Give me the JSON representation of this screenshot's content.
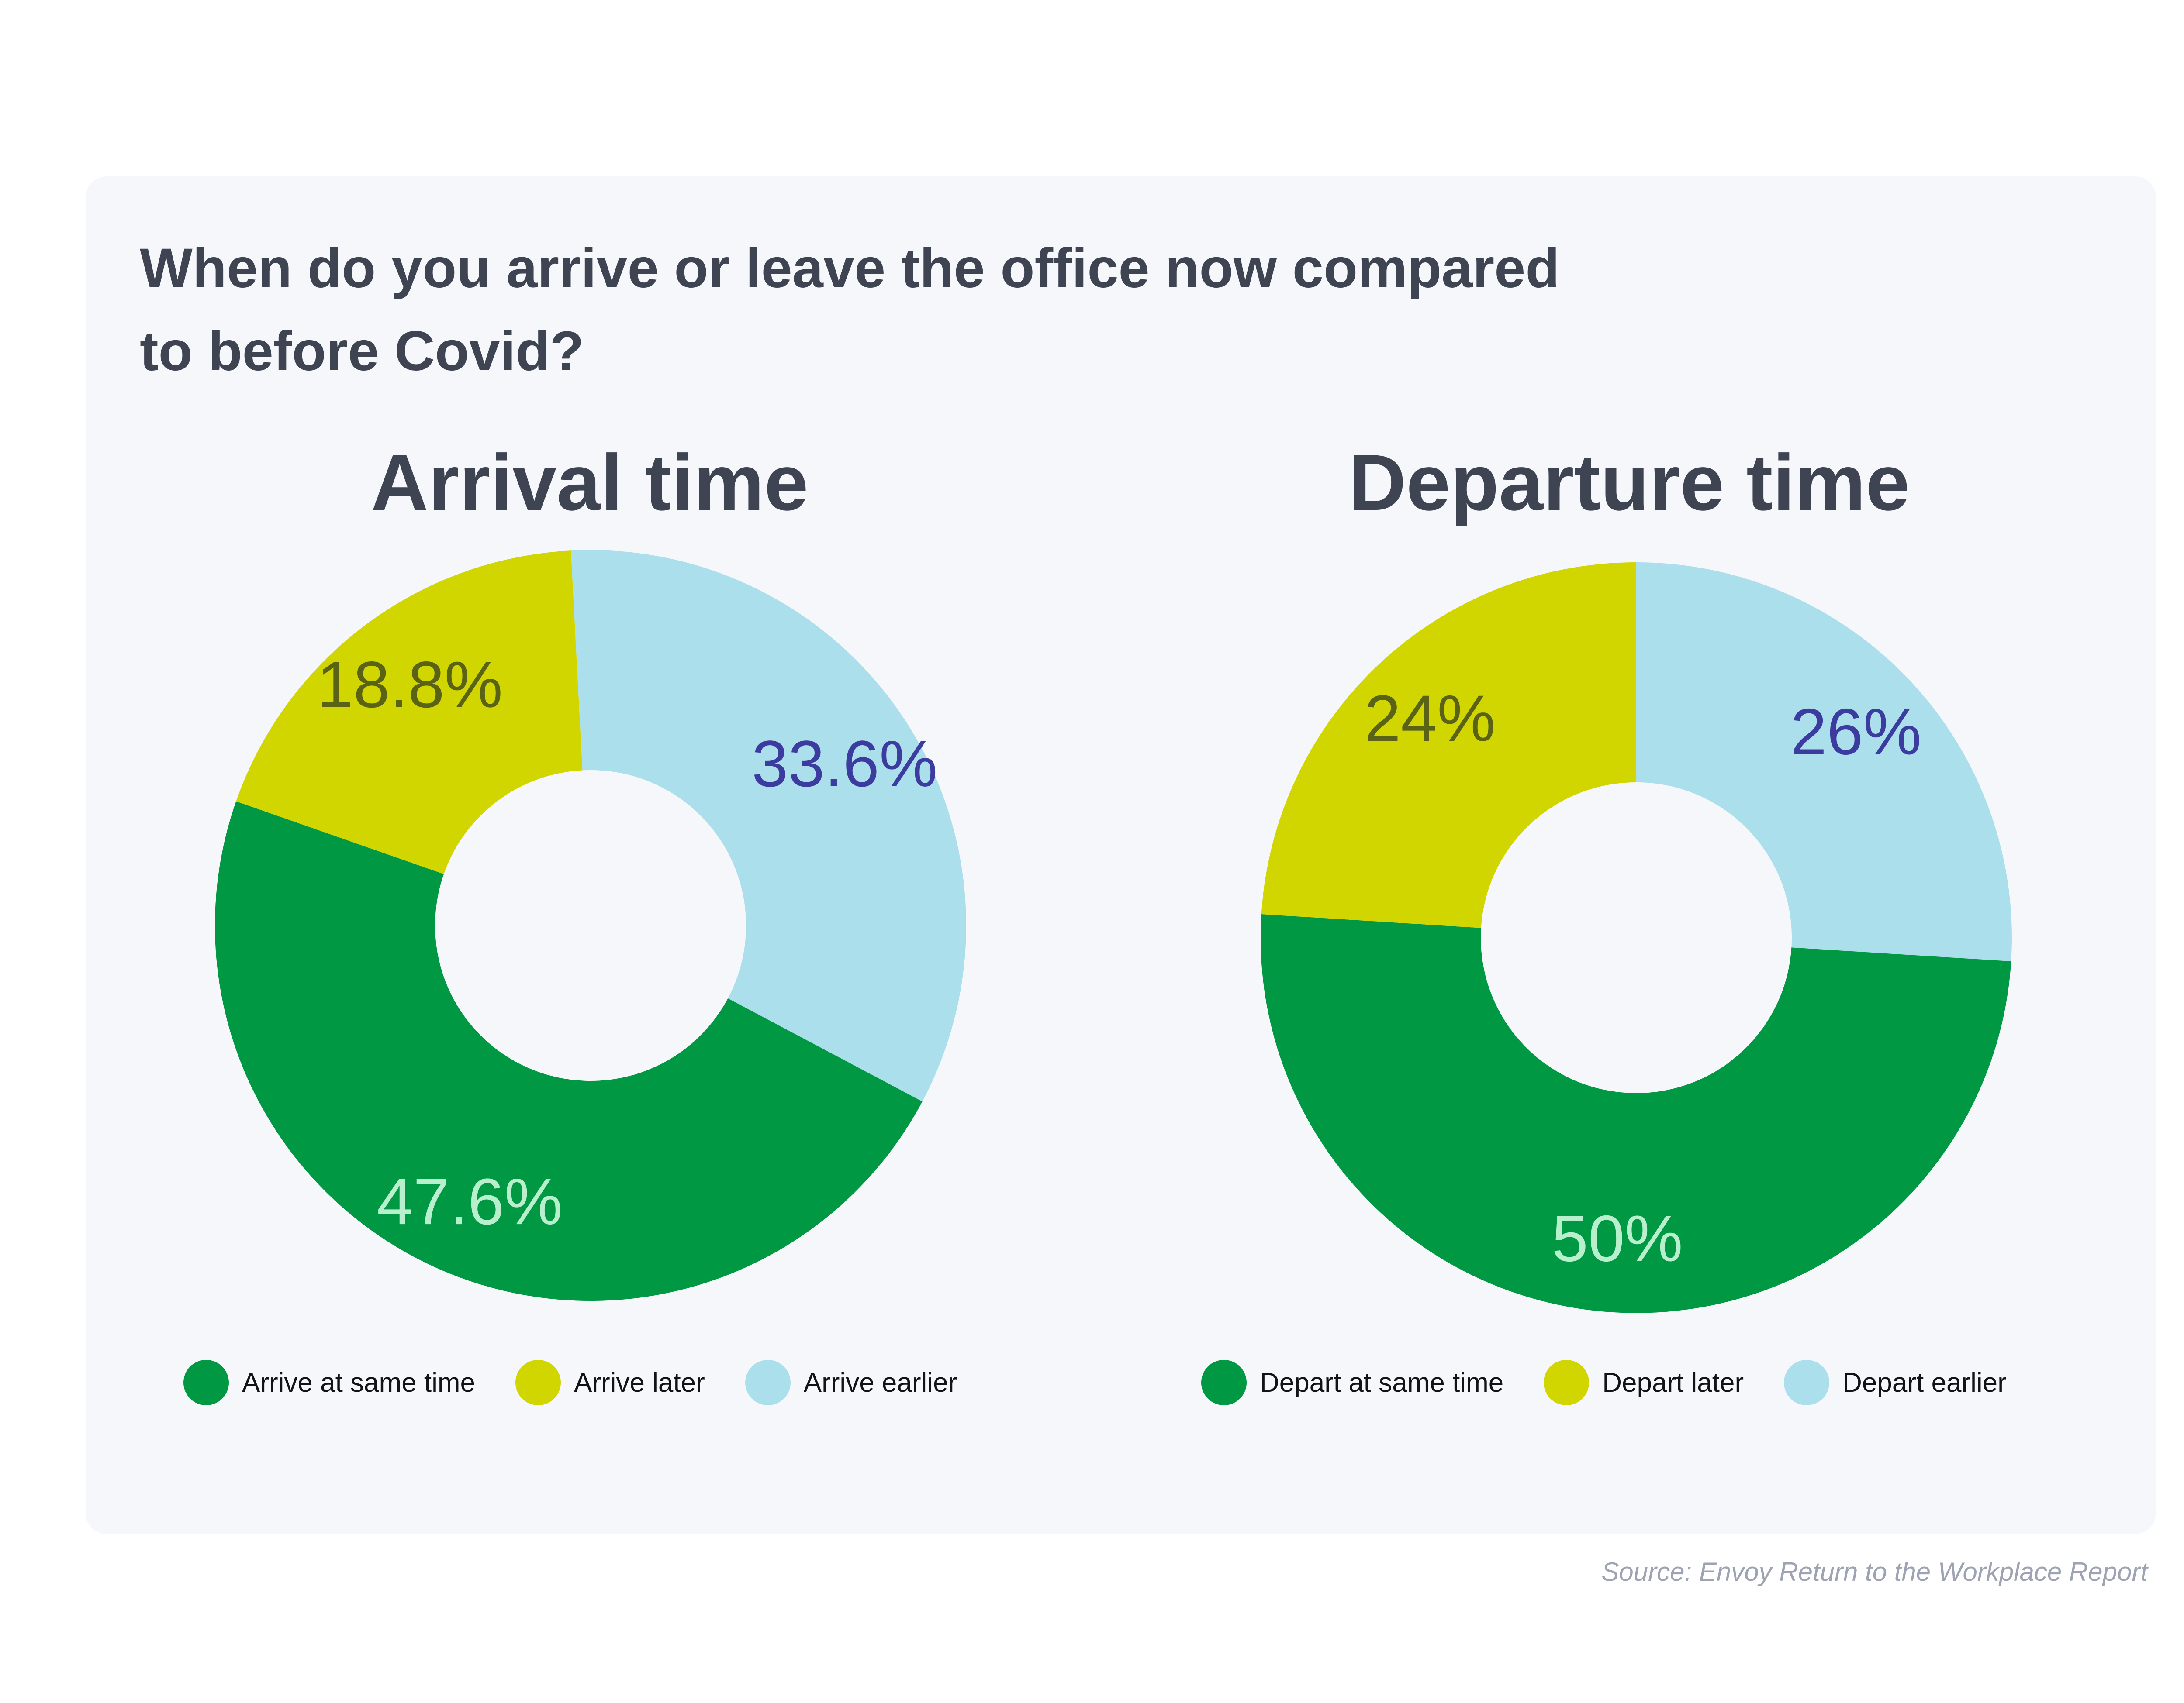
{
  "title_lines": [
    "When do you arrive or leave the office now compared",
    "to before Covid?"
  ],
  "source": "Source: Envoy Return to the Workplace Report",
  "colors": {
    "same": "#009843",
    "later": "#d1d500",
    "earlier": "#acdfec",
    "same_label": "#b8f0cd",
    "later_label": "#5a6216",
    "earlier_label": "#3c3ca0",
    "card_background": "#f6f7fb",
    "title_text": "#3f4452"
  },
  "chart_data": [
    {
      "type": "pie",
      "variant": "donut",
      "title": "Arrival time",
      "slices": [
        {
          "label": "Arrive earlier",
          "value": 33.6,
          "display": "33.6%",
          "color_key": "earlier"
        },
        {
          "label": "Arrive at same time",
          "value": 47.6,
          "display": "47.6%",
          "color_key": "same"
        },
        {
          "label": "Arrive later",
          "value": 18.8,
          "display": "18.8%",
          "color_key": "later"
        }
      ],
      "legend": [
        "Arrive at same time",
        "Arrive later",
        "Arrive earlier"
      ],
      "legend_position": "bottom"
    },
    {
      "type": "pie",
      "variant": "donut",
      "title": "Departure time",
      "slices": [
        {
          "label": "Depart earlier",
          "value": 26,
          "display": "26%",
          "color_key": "earlier"
        },
        {
          "label": "Depart at same time",
          "value": 50,
          "display": "50%",
          "color_key": "same"
        },
        {
          "label": "Depart later",
          "value": 24,
          "display": "24%",
          "color_key": "later"
        }
      ],
      "legend": [
        "Depart at same time",
        "Depart later",
        "Depart earlier"
      ],
      "legend_position": "bottom"
    }
  ]
}
